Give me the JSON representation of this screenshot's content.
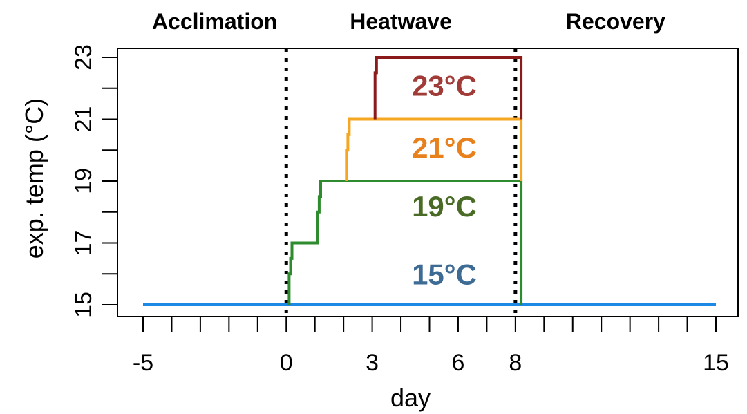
{
  "chart_data": {
    "type": "line",
    "title": "",
    "phase_labels": [
      {
        "text": "Acclimation",
        "center_day": -2.5
      },
      {
        "text": "Heatwave",
        "center_day": 4
      },
      {
        "text": "Recovery",
        "center_day": 11.5
      }
    ],
    "xlabel": "day",
    "ylabel": "exp. temp (°C)",
    "xlim": [
      -5,
      15
    ],
    "ylim": [
      15,
      23
    ],
    "x_tick_labels": [
      "-5",
      "0",
      "3",
      "6",
      "8",
      "15"
    ],
    "x_tick_values": [
      -5,
      0,
      3,
      6,
      8,
      15
    ],
    "x_minor_ticks": [
      -5,
      -4,
      -3,
      -2,
      -1,
      0,
      1,
      2,
      3,
      4,
      5,
      6,
      7,
      8,
      9,
      10,
      11,
      12,
      13,
      14,
      15
    ],
    "y_tick_labels": [
      "15",
      "17",
      "19",
      "21",
      "23"
    ],
    "y_tick_values": [
      15,
      17,
      19,
      21,
      23
    ],
    "y_minor_ticks": [
      15,
      16,
      17,
      18,
      19,
      20,
      21,
      22,
      23
    ],
    "vlines": [
      0,
      8
    ],
    "series": [
      {
        "name": "15°C",
        "color": "#1e88e5",
        "label_y": 16,
        "x": [
          -5,
          15
        ],
        "y": [
          15,
          15
        ]
      },
      {
        "name": "19°C",
        "color": "#2e8b2e",
        "label_y": 18.2,
        "x": [
          0.1,
          0.1,
          0.15,
          0.15,
          0.2,
          0.2,
          1.1,
          1.1,
          1.15,
          1.15,
          1.2,
          1.2,
          8.2,
          8.2
        ],
        "y": [
          15,
          16,
          16,
          16.5,
          16.5,
          17,
          17,
          18,
          18,
          18.5,
          18.5,
          19,
          19,
          15
        ]
      },
      {
        "name": "21°C",
        "color": "#f5a623",
        "label_y": 20.1,
        "x": [
          2.1,
          2.1,
          2.15,
          2.15,
          2.2,
          2.2,
          8.2,
          8.2
        ],
        "y": [
          19,
          20,
          20,
          20.5,
          20.5,
          21,
          21,
          19
        ]
      },
      {
        "name": "23°C",
        "color": "#8b1a1a",
        "label_y": 22.1,
        "x": [
          3.1,
          3.1,
          3.15,
          3.15,
          8.2,
          8.2
        ],
        "y": [
          21,
          22.5,
          22.5,
          23,
          23,
          21
        ]
      }
    ],
    "label_colors": {
      "15°C": "#3d6b94",
      "19°C": "#4a6b26",
      "21°C": "#e8801c",
      "23°C": "#a03b37"
    },
    "frame_color": "#000000",
    "vline_color": "#000000"
  }
}
